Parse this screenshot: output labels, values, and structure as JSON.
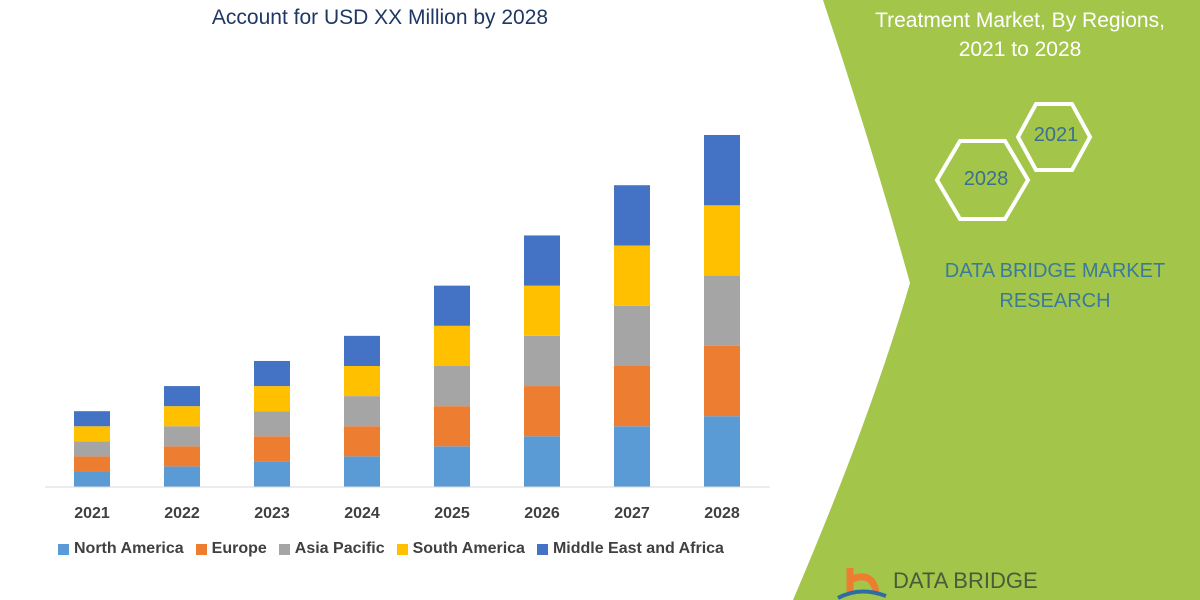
{
  "header": {
    "title": "Account for USD XX Million by 2028",
    "side_title_line1": "Treatment Market, By Regions,",
    "side_title_line2": "2021 to 2028"
  },
  "badges": {
    "start_year": "2021",
    "end_year": "2028"
  },
  "brand": {
    "line1": "DATA BRIDGE MARKET",
    "line2": "RESEARCH",
    "logo_text": "DATA BRIDGE"
  },
  "colors": {
    "panel_green": "#a3c64a",
    "title_blue": "#1f3864"
  },
  "chart_data": {
    "type": "bar",
    "stacked": true,
    "categories": [
      "2021",
      "2022",
      "2023",
      "2024",
      "2025",
      "2026",
      "2027",
      "2028"
    ],
    "series": [
      {
        "name": "North America",
        "color": "#5b9bd5",
        "values": [
          15,
          20,
          25,
          30,
          40,
          50,
          60,
          70
        ]
      },
      {
        "name": "Europe",
        "color": "#ed7d31",
        "values": [
          15,
          20,
          25,
          30,
          40,
          50,
          60,
          70
        ]
      },
      {
        "name": "Asia Pacific",
        "color": "#a5a5a5",
        "values": [
          15,
          20,
          25,
          30,
          40,
          50,
          60,
          70
        ]
      },
      {
        "name": "South America",
        "color": "#ffc000",
        "values": [
          15,
          20,
          25,
          30,
          40,
          50,
          60,
          70
        ]
      },
      {
        "name": "Middle East and Africa",
        "color": "#4472c4",
        "values": [
          15,
          20,
          25,
          30,
          40,
          50,
          60,
          70
        ]
      }
    ],
    "ylim": [
      0,
      350
    ],
    "grid": false,
    "legend": "bottom"
  }
}
